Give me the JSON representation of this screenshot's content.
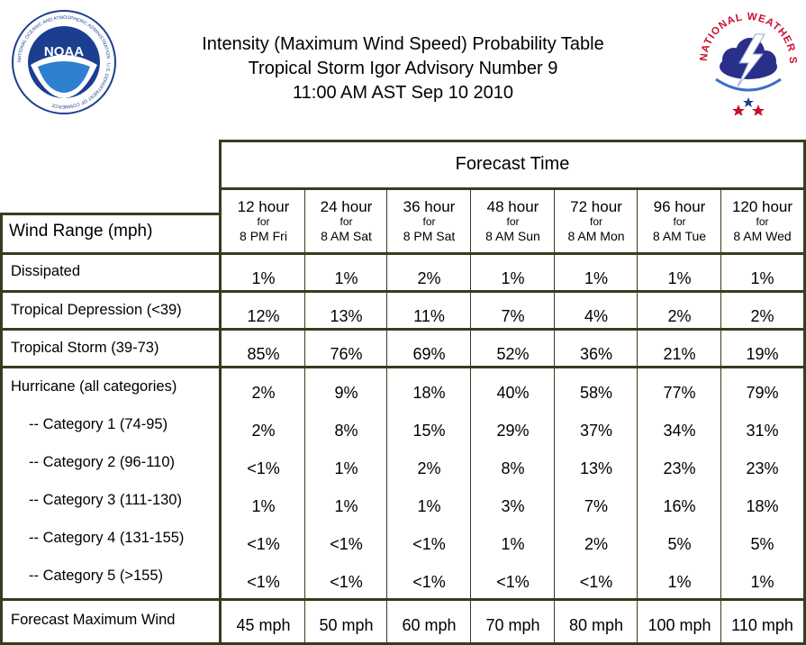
{
  "title": {
    "line1": "Intensity (Maximum Wind Speed) Probability Table",
    "line2": "Tropical Storm Igor Advisory Number 9",
    "line3": "11:00 AM AST Sep 10 2010"
  },
  "logos": {
    "noaa_center": "NOAA",
    "noaa_ring": "NATIONAL OCEANIC AND ATMOSPHERIC ADMINISTRATION · U.S. DEPARTMENT OF COMMERCE",
    "nws_ring": "NATIONAL WEATHER SERVICE"
  },
  "table": {
    "forecast_time_label": "Forecast Time",
    "wind_range_label": "Wind Range (mph)",
    "columns": [
      {
        "hour": "12 hour",
        "for": "for",
        "when": "8 PM Fri"
      },
      {
        "hour": "24 hour",
        "for": "for",
        "when": "8 AM Sat"
      },
      {
        "hour": "36 hour",
        "for": "for",
        "when": "8 PM Sat"
      },
      {
        "hour": "48 hour",
        "for": "for",
        "when": "8 AM Sun"
      },
      {
        "hour": "72 hour",
        "for": "for",
        "when": "8 AM Mon"
      },
      {
        "hour": "96 hour",
        "for": "for",
        "when": "8 AM Tue"
      },
      {
        "hour": "120 hour",
        "for": "for",
        "when": "8 AM Wed"
      }
    ],
    "rows": [
      {
        "label": "Dissipated",
        "values": [
          "1%",
          "1%",
          "2%",
          "1%",
          "1%",
          "1%",
          "1%"
        ]
      },
      {
        "label": "Tropical Depression (<39)",
        "values": [
          "12%",
          "13%",
          "11%",
          "7%",
          "4%",
          "2%",
          "2%"
        ]
      },
      {
        "label": "Tropical Storm (39-73)",
        "values": [
          "85%",
          "76%",
          "69%",
          "52%",
          "36%",
          "21%",
          "19%"
        ]
      },
      {
        "label": "Hurricane (all categories)",
        "values": [
          "2%",
          "9%",
          "18%",
          "40%",
          "58%",
          "77%",
          "79%"
        ]
      },
      {
        "label": "-- Category 1 (74-95)",
        "values": [
          "2%",
          "8%",
          "15%",
          "29%",
          "37%",
          "34%",
          "31%"
        ]
      },
      {
        "label": "-- Category 2 (96-110)",
        "values": [
          "<1%",
          "1%",
          "2%",
          "8%",
          "13%",
          "23%",
          "23%"
        ]
      },
      {
        "label": "-- Category 3 (111-130)",
        "values": [
          "1%",
          "1%",
          "1%",
          "3%",
          "7%",
          "16%",
          "18%"
        ]
      },
      {
        "label": "-- Category 4 (131-155)",
        "values": [
          "<1%",
          "<1%",
          "<1%",
          "1%",
          "2%",
          "5%",
          "5%"
        ]
      },
      {
        "label": "-- Category 5 (>155)",
        "values": [
          "<1%",
          "<1%",
          "<1%",
          "<1%",
          "<1%",
          "1%",
          "1%"
        ]
      },
      {
        "label": "Forecast Maximum Wind",
        "values": [
          "45 mph",
          "50 mph",
          "60 mph",
          "70 mph",
          "80 mph",
          "100 mph",
          "110 mph"
        ]
      }
    ]
  },
  "colors": {
    "border": "#3a3a1e",
    "noaa_blue": "#1b3f8f",
    "nws_red": "#c8102e"
  }
}
